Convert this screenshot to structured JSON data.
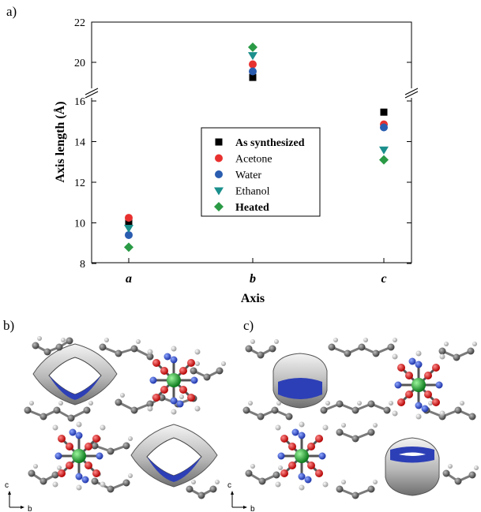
{
  "panels": {
    "a_label": "a)",
    "b_label": "b)",
    "c_label": "c)"
  },
  "chart_data": {
    "type": "scatter",
    "categories": [
      "a",
      "b",
      "c"
    ],
    "xlabel": "Axis",
    "ylabel": "Axis length (Å)",
    "ylim": [
      8,
      22
    ],
    "axis_break": [
      16.5,
      19
    ],
    "yticks": [
      8,
      10,
      12,
      14,
      16,
      20,
      22
    ],
    "grid": false,
    "legend_position": "center",
    "series": [
      {
        "name": "As synthesized",
        "marker": "square",
        "color": "#000000",
        "bold": true,
        "values": [
          10.0,
          19.25,
          15.45
        ]
      },
      {
        "name": "Acetone",
        "marker": "circle",
        "color": "#e8312f",
        "bold": false,
        "values": [
          10.25,
          19.9,
          14.85
        ]
      },
      {
        "name": "Water",
        "marker": "circle",
        "color": "#2a5db0",
        "bold": false,
        "values": [
          9.4,
          19.55,
          14.7
        ]
      },
      {
        "name": "Ethanol",
        "marker": "triangle",
        "color": "#1a8f8c",
        "bold": false,
        "values": [
          9.75,
          20.35,
          13.6
        ]
      },
      {
        "name": "Heated",
        "marker": "diamond",
        "color": "#2a9a45",
        "bold": true,
        "values": [
          8.8,
          20.75,
          13.1
        ]
      }
    ]
  },
  "structure_panels": {
    "b_axes": {
      "vertical": "c",
      "horizontal": "b"
    },
    "c_axes": {
      "vertical": "c",
      "horizontal": "b"
    }
  }
}
